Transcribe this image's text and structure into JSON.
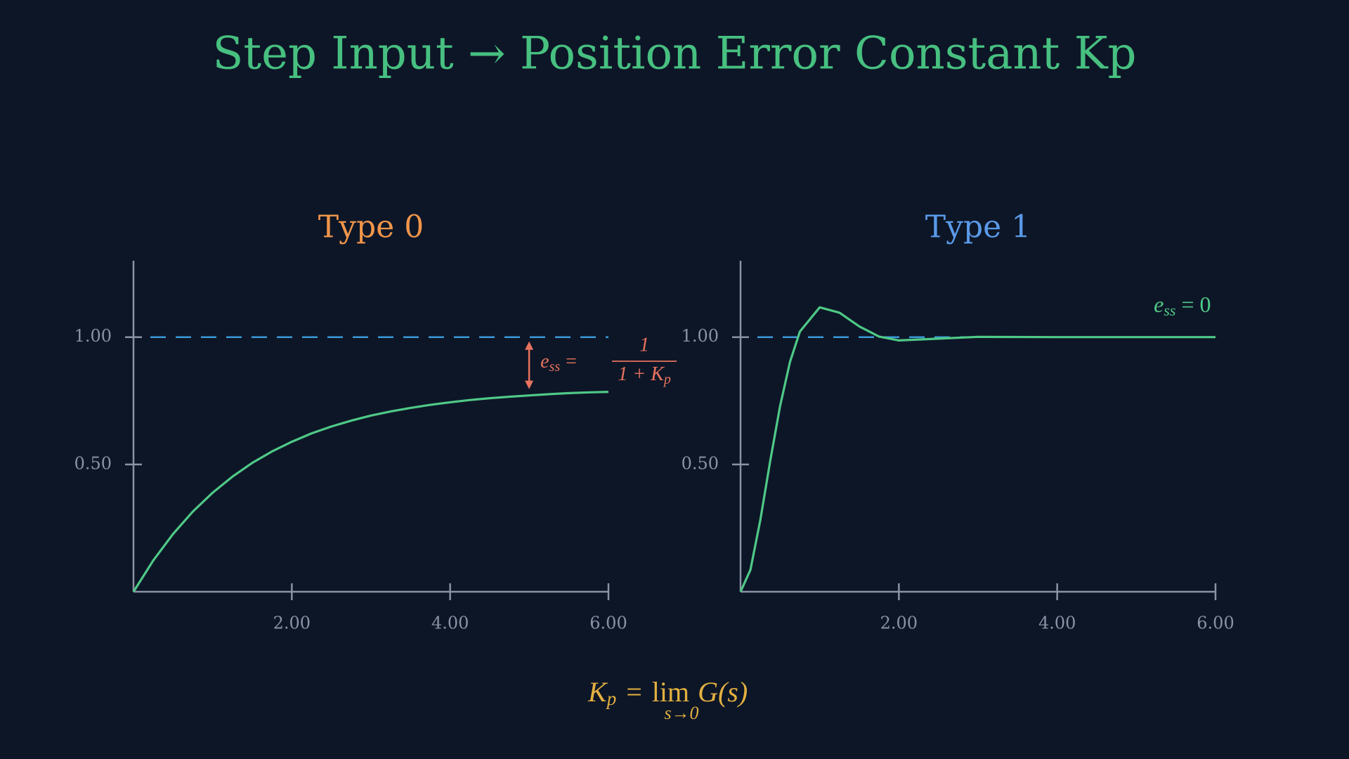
{
  "title": "Step Input → Position Error Constant Kp",
  "title_color": "#47c080",
  "background": "#0d1627",
  "chart_data": [
    {
      "type": "line",
      "title": "Type 0",
      "title_color": "#f0954a",
      "x": [
        0,
        0.25,
        0.5,
        0.75,
        1,
        1.25,
        1.5,
        1.75,
        2,
        2.25,
        2.5,
        2.75,
        3,
        3.25,
        3.5,
        3.75,
        4,
        4.25,
        4.5,
        4.75,
        5,
        5.25,
        5.5,
        5.75,
        6
      ],
      "series": [
        {
          "color": "#4fc987",
          "values": [
            0,
            0.123,
            0.227,
            0.315,
            0.389,
            0.452,
            0.506,
            0.551,
            0.589,
            0.622,
            0.649,
            0.672,
            0.692,
            0.708,
            0.722,
            0.734,
            0.744,
            0.753,
            0.76,
            0.766,
            0.771,
            0.776,
            0.78,
            0.783,
            0.785
          ]
        }
      ],
      "xlim": [
        0,
        6
      ],
      "ylim": [
        0,
        1.3
      ],
      "xticks": [
        {
          "value": 2,
          "label": "2.00"
        },
        {
          "value": 4,
          "label": "4.00"
        },
        {
          "value": 6,
          "label": "6.00"
        }
      ],
      "yticks": [
        {
          "value": 0.5,
          "label": "0.50"
        },
        {
          "value": 1,
          "label": "1.00"
        }
      ],
      "reference": {
        "value": 1,
        "color": "#3a9ad9",
        "dashed": true
      },
      "annotation": {
        "e": "e",
        "sub": "ss",
        "eq": "=",
        "num": "1",
        "den": "1 + K",
        "den_sub": "p",
        "color": "#e8735f",
        "arrow": true
      }
    },
    {
      "type": "line",
      "title": "Type 1",
      "title_color": "#5a9ae8",
      "x": [
        0,
        0.125,
        0.25,
        0.375,
        0.5,
        0.625,
        0.75,
        1,
        1.25,
        1.5,
        1.75,
        2,
        2.5,
        3,
        4,
        5,
        6
      ],
      "series": [
        {
          "color": "#4fc987",
          "values": [
            0,
            0.086,
            0.282,
            0.514,
            0.73,
            0.903,
            1.022,
            1.117,
            1.096,
            1.042,
            1.002,
            0.987,
            0.994,
            1.001,
            1.0,
            1.0,
            1.0
          ]
        }
      ],
      "xlim": [
        0,
        6
      ],
      "ylim": [
        0,
        1.3
      ],
      "xticks": [
        {
          "value": 2,
          "label": "2.00"
        },
        {
          "value": 4,
          "label": "4.00"
        },
        {
          "value": 6,
          "label": "6.00"
        }
      ],
      "yticks": [
        {
          "value": 0.5,
          "label": "0.50"
        },
        {
          "value": 1,
          "label": "1.00"
        }
      ],
      "reference": {
        "value": 1,
        "color": "#3a9ad9",
        "dashed": true
      },
      "annotation": {
        "e": "e",
        "sub": "ss",
        "eq": "= 0",
        "color": "#4fc987",
        "arrow": false
      }
    }
  ],
  "formula": {
    "lhs": "K",
    "lhs_sub": "p",
    "eq": "=",
    "lim": "lim",
    "lim_sub": "s→0",
    "rhs": "G(s)",
    "color": "#e3b040"
  }
}
